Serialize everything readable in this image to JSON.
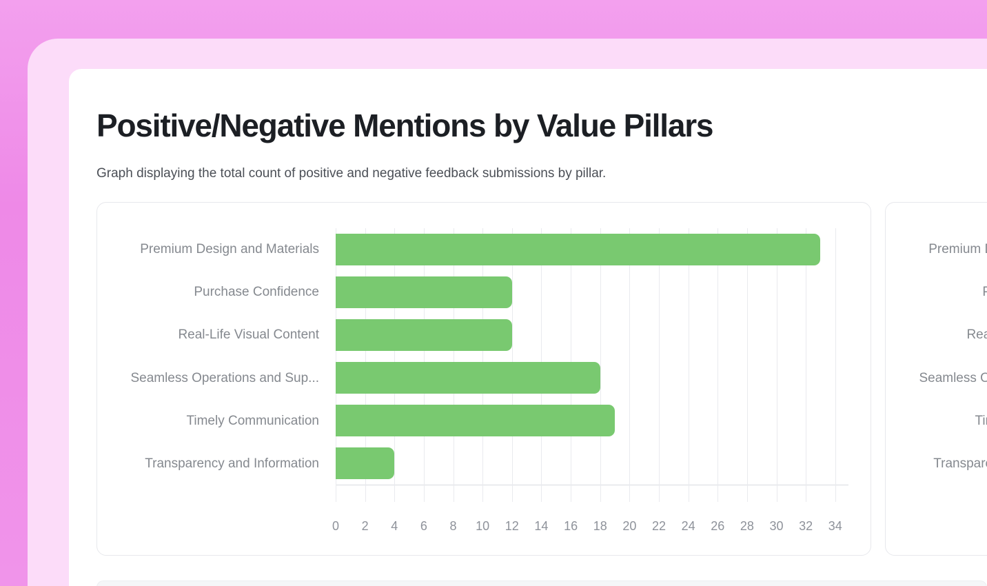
{
  "page": {
    "title": "Positive/Negative Mentions by Value Pillars",
    "subtitle": "Graph displaying the total count of positive and negative feedback submissions by pillar."
  },
  "chart_data": {
    "type": "bar",
    "orientation": "horizontal",
    "title": "",
    "categories": [
      "Premium Design and Materials",
      "Purchase Confidence",
      "Real-Life Visual Content",
      "Seamless Operations and Sup...",
      "Timely Communication",
      "Transparency and Information"
    ],
    "values": [
      33,
      12,
      12,
      18,
      19,
      4
    ],
    "x_ticks": [
      0,
      2,
      4,
      6,
      8,
      10,
      12,
      14,
      16,
      18,
      20,
      22,
      24,
      26,
      28,
      30,
      32,
      34
    ],
    "xlim": [
      0,
      34.9
    ],
    "grid": true,
    "legend_position": "none",
    "bar_color": "#79c970"
  },
  "colors": {
    "background_pink": "#ee89e7",
    "frame_pink": "#fcdcf9",
    "card_white": "#ffffff",
    "card_border": "#e7e8ec",
    "bar_green": "#79c970",
    "grid_line": "#e9eaee",
    "axis_line": "#d9dbe0",
    "category_label_gray": "#85898f",
    "tick_label_gray": "#8e929a",
    "title_dark": "#1c1f24",
    "subtitle_gray": "#4b4f56"
  }
}
